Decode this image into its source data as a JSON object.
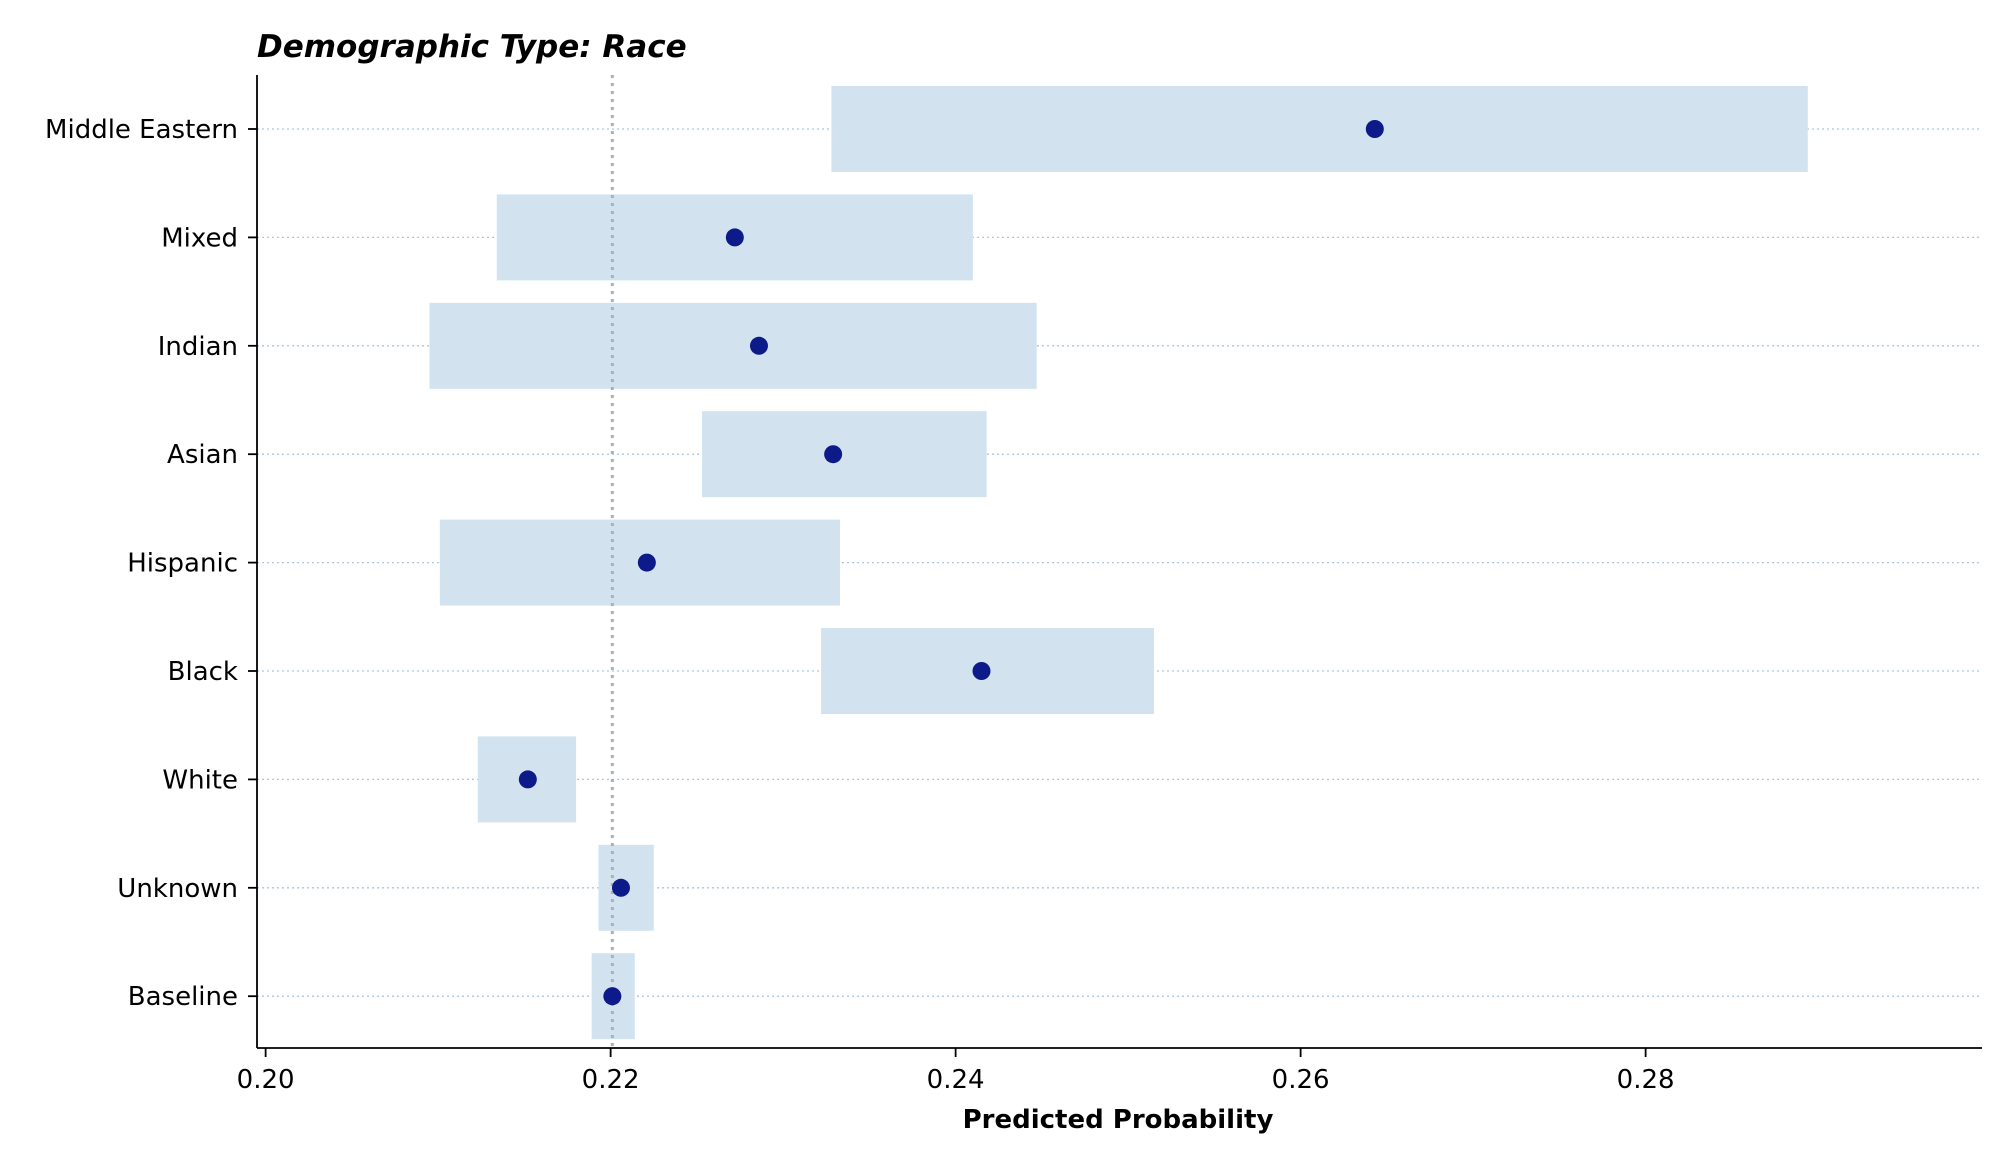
{
  "chart_data": {
    "type": "scatter",
    "title": "Demographic Type: Race",
    "xlabel": "Predicted Probability",
    "ylabel": "",
    "xlim": [
      0.1995,
      0.2995
    ],
    "xticks": [
      0.2,
      0.22,
      0.24,
      0.26,
      0.28
    ],
    "xtick_labels": [
      "0.20",
      "0.22",
      "0.24",
      "0.26",
      "0.28"
    ],
    "reference_line": 0.2201,
    "grid": "horizontal dotted",
    "categories": [
      "Middle Eastern",
      "Mixed",
      "Indian",
      "Asian",
      "Hispanic",
      "Black",
      "White",
      "Unknown",
      "Baseline"
    ],
    "points": [
      {
        "label": "Middle Eastern",
        "value": 0.2643,
        "ci": [
          0.2328,
          0.2894
        ]
      },
      {
        "label": "Mixed",
        "value": 0.2272,
        "ci": [
          0.2134,
          0.241
        ]
      },
      {
        "label": "Indian",
        "value": 0.2286,
        "ci": [
          0.2095,
          0.2447
        ]
      },
      {
        "label": "Asian",
        "value": 0.2329,
        "ci": [
          0.2253,
          0.2418
        ]
      },
      {
        "label": "Hispanic",
        "value": 0.2221,
        "ci": [
          0.2101,
          0.2333
        ]
      },
      {
        "label": "Black",
        "value": 0.2415,
        "ci": [
          0.2322,
          0.2515
        ]
      },
      {
        "label": "White",
        "value": 0.2152,
        "ci": [
          0.2123,
          0.218
        ]
      },
      {
        "label": "Unknown",
        "value": 0.2206,
        "ci": [
          0.2193,
          0.2225
        ]
      },
      {
        "label": "Baseline",
        "value": 0.2201,
        "ci": [
          0.2189,
          0.2214
        ]
      }
    ],
    "colors": {
      "point": "#0d1a8a",
      "ci_band": "#d2e3ef",
      "grid": "#a9c8dd",
      "reference": "#a8b0b8"
    }
  }
}
